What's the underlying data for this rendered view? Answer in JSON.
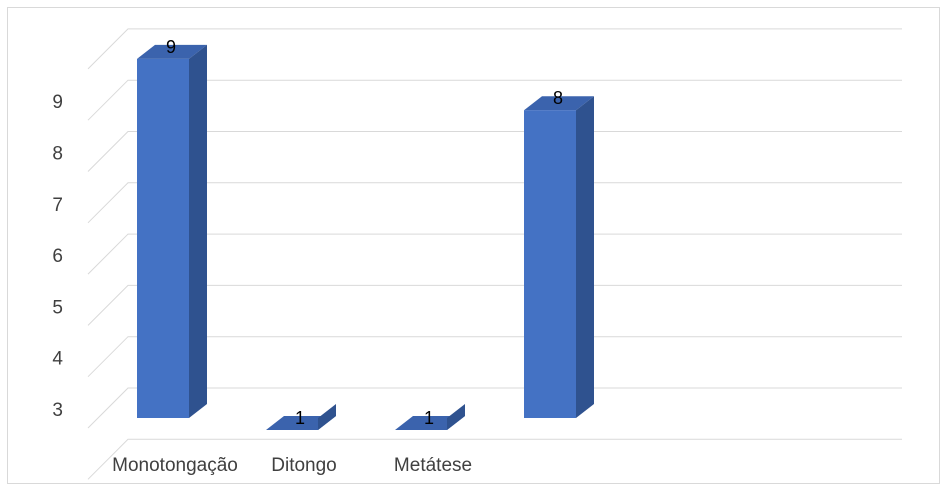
{
  "chart_data": {
    "type": "bar",
    "style": "3d-column",
    "categories": [
      "Monotongação",
      "Ditongo",
      "Metátese",
      ""
    ],
    "values": [
      9,
      1,
      1,
      8
    ],
    "data_labels": [
      "9",
      "1",
      "1",
      "8"
    ],
    "ytick_labels": [
      "3",
      "4",
      "5",
      "6",
      "7",
      "8",
      "9"
    ],
    "ylim": [
      2,
      10
    ],
    "grid": true,
    "legend": "none",
    "colors": {
      "bar_front": "#4472c4",
      "bar_side": "#2f528f",
      "bar_top": "#3b63ad",
      "grid": "#d9d9d9",
      "text": "#404040",
      "label": "#000000"
    }
  }
}
